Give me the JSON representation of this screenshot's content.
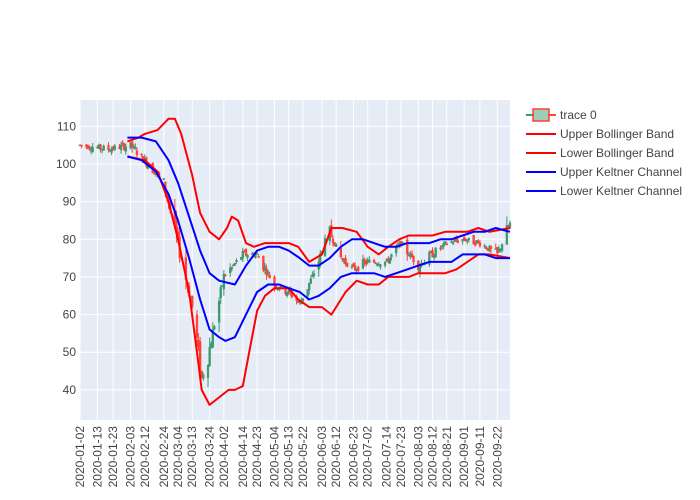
{
  "chart_data": {
    "type": "candlestick",
    "title": "",
    "xlabel": "",
    "ylabel": "",
    "ylim": [
      32,
      117
    ],
    "xlim": [
      "2020-01-02",
      "2020-09-30"
    ],
    "grid": true,
    "legend_position": "top-right",
    "x_ticks": [
      "2020-01-02",
      "2020-01-13",
      "2020-01-23",
      "2020-02-03",
      "2020-02-12",
      "2020-02-24",
      "2020-03-04",
      "2020-03-13",
      "2020-03-24",
      "2020-04-02",
      "2020-04-14",
      "2020-04-23",
      "2020-05-04",
      "2020-05-13",
      "2020-05-22",
      "2020-06-03",
      "2020-06-12",
      "2020-06-23",
      "2020-07-02",
      "2020-07-14",
      "2020-07-23",
      "2020-08-03",
      "2020-08-12",
      "2020-08-21",
      "2020-09-01",
      "2020-09-11",
      "2020-09-22"
    ],
    "y_ticks": [
      40,
      50,
      60,
      70,
      80,
      90,
      100,
      110
    ],
    "colors": {
      "increasing": "#3D9970",
      "decreasing": "#FF4136",
      "bollinger": "#FF0000",
      "keltner": "#0000FF",
      "plot_bg": "#E5ECF6"
    },
    "candle_key_points": [
      [
        "2020-01-02",
        105
      ],
      [
        "2020-01-20",
        104
      ],
      [
        "2020-02-03",
        105
      ],
      [
        "2020-02-12",
        101
      ],
      [
        "2020-02-24",
        95
      ],
      [
        "2020-03-04",
        79
      ],
      [
        "2020-03-13",
        62
      ],
      [
        "2020-03-19",
        43
      ],
      [
        "2020-03-24",
        51
      ],
      [
        "2020-04-02",
        70
      ],
      [
        "2020-04-14",
        76
      ],
      [
        "2020-04-23",
        76
      ],
      [
        "2020-05-04",
        68
      ],
      [
        "2020-05-13",
        66
      ],
      [
        "2020-05-20",
        63
      ],
      [
        "2020-05-28",
        70
      ],
      [
        "2020-06-08",
        82
      ],
      [
        "2020-06-15",
        75
      ],
      [
        "2020-06-23",
        72
      ],
      [
        "2020-07-02",
        74
      ],
      [
        "2020-07-14",
        74
      ],
      [
        "2020-07-23",
        79
      ],
      [
        "2020-08-03",
        73
      ],
      [
        "2020-08-12",
        76
      ],
      [
        "2020-08-21",
        79
      ],
      [
        "2020-09-01",
        80
      ],
      [
        "2020-09-11",
        79
      ],
      [
        "2020-09-22",
        76
      ],
      [
        "2020-09-30",
        84
      ]
    ],
    "series": [
      {
        "name": "trace 0",
        "kind": "candlestick"
      },
      {
        "name": "Upper Bollinger Band",
        "kind": "line",
        "color": "#FF0000",
        "points": [
          [
            "2020-02-01",
            106
          ],
          [
            "2020-02-08",
            107
          ],
          [
            "2020-02-12",
            108
          ],
          [
            "2020-02-20",
            109
          ],
          [
            "2020-02-27",
            112
          ],
          [
            "2020-03-02",
            112
          ],
          [
            "2020-03-06",
            108
          ],
          [
            "2020-03-13",
            97
          ],
          [
            "2020-03-18",
            87
          ],
          [
            "2020-03-24",
            82
          ],
          [
            "2020-03-30",
            80
          ],
          [
            "2020-04-04",
            83
          ],
          [
            "2020-04-07",
            86
          ],
          [
            "2020-04-11",
            85
          ],
          [
            "2020-04-16",
            79
          ],
          [
            "2020-04-21",
            78
          ],
          [
            "2020-04-28",
            79
          ],
          [
            "2020-05-06",
            79
          ],
          [
            "2020-05-13",
            79
          ],
          [
            "2020-05-19",
            78
          ],
          [
            "2020-05-26",
            74
          ],
          [
            "2020-06-03",
            76
          ],
          [
            "2020-06-09",
            83
          ],
          [
            "2020-06-16",
            83
          ],
          [
            "2020-06-25",
            82
          ],
          [
            "2020-07-02",
            78
          ],
          [
            "2020-07-09",
            76
          ],
          [
            "2020-07-15",
            78
          ],
          [
            "2020-07-22",
            80
          ],
          [
            "2020-07-28",
            81
          ],
          [
            "2020-08-12",
            81
          ],
          [
            "2020-08-20",
            82
          ],
          [
            "2020-08-27",
            82
          ],
          [
            "2020-09-03",
            82
          ],
          [
            "2020-09-10",
            83
          ],
          [
            "2020-09-17",
            82
          ],
          [
            "2020-09-30",
            83
          ]
        ]
      },
      {
        "name": "Lower Bollinger Band",
        "kind": "line",
        "color": "#FF0000",
        "points": [
          [
            "2020-02-01",
            102
          ],
          [
            "2020-02-12",
            101
          ],
          [
            "2020-02-20",
            98
          ],
          [
            "2020-02-27",
            90
          ],
          [
            "2020-03-04",
            80
          ],
          [
            "2020-03-11",
            66
          ],
          [
            "2020-03-16",
            50
          ],
          [
            "2020-03-19",
            40
          ],
          [
            "2020-03-24",
            36
          ],
          [
            "2020-03-30",
            38
          ],
          [
            "2020-04-05",
            40
          ],
          [
            "2020-04-09",
            40
          ],
          [
            "2020-04-14",
            41
          ],
          [
            "2020-04-18",
            50
          ],
          [
            "2020-04-23",
            61
          ],
          [
            "2020-04-28",
            65
          ],
          [
            "2020-05-04",
            67
          ],
          [
            "2020-05-13",
            67
          ],
          [
            "2020-05-19",
            64
          ],
          [
            "2020-05-26",
            62
          ],
          [
            "2020-06-03",
            62
          ],
          [
            "2020-06-09",
            60
          ],
          [
            "2020-06-18",
            66
          ],
          [
            "2020-06-25",
            69
          ],
          [
            "2020-07-02",
            68
          ],
          [
            "2020-07-09",
            68
          ],
          [
            "2020-07-15",
            70
          ],
          [
            "2020-07-22",
            70
          ],
          [
            "2020-07-28",
            70
          ],
          [
            "2020-08-03",
            71
          ],
          [
            "2020-08-10",
            71
          ],
          [
            "2020-08-20",
            71
          ],
          [
            "2020-08-27",
            72
          ],
          [
            "2020-09-03",
            74
          ],
          [
            "2020-09-10",
            76
          ],
          [
            "2020-09-17",
            76
          ],
          [
            "2020-09-30",
            75
          ]
        ]
      },
      {
        "name": "Upper Keltner Channel",
        "kind": "line",
        "color": "#0000FF",
        "points": [
          [
            "2020-02-01",
            107
          ],
          [
            "2020-02-10",
            107
          ],
          [
            "2020-02-19",
            106
          ],
          [
            "2020-02-27",
            101
          ],
          [
            "2020-03-04",
            95
          ],
          [
            "2020-03-11",
            86
          ],
          [
            "2020-03-18",
            77
          ],
          [
            "2020-03-24",
            71
          ],
          [
            "2020-03-30",
            69
          ],
          [
            "2020-04-09",
            68
          ],
          [
            "2020-04-16",
            73
          ],
          [
            "2020-04-23",
            77
          ],
          [
            "2020-04-30",
            78
          ],
          [
            "2020-05-07",
            78
          ],
          [
            "2020-05-13",
            77
          ],
          [
            "2020-05-20",
            75
          ],
          [
            "2020-05-26",
            73
          ],
          [
            "2020-06-01",
            73
          ],
          [
            "2020-06-08",
            75
          ],
          [
            "2020-06-15",
            78
          ],
          [
            "2020-06-22",
            80
          ],
          [
            "2020-06-29",
            80
          ],
          [
            "2020-07-06",
            79
          ],
          [
            "2020-07-13",
            78
          ],
          [
            "2020-07-20",
            78
          ],
          [
            "2020-07-27",
            79
          ],
          [
            "2020-08-03",
            79
          ],
          [
            "2020-08-10",
            79
          ],
          [
            "2020-08-17",
            80
          ],
          [
            "2020-08-24",
            80
          ],
          [
            "2020-08-31",
            81
          ],
          [
            "2020-09-07",
            82
          ],
          [
            "2020-09-14",
            82
          ],
          [
            "2020-09-21",
            83
          ],
          [
            "2020-09-30",
            82
          ]
        ]
      },
      {
        "name": "Lower Keltner Channel",
        "kind": "line",
        "color": "#0000FF",
        "points": [
          [
            "2020-02-01",
            102
          ],
          [
            "2020-02-10",
            101
          ],
          [
            "2020-02-19",
            98
          ],
          [
            "2020-02-27",
            92
          ],
          [
            "2020-03-04",
            85
          ],
          [
            "2020-03-11",
            75
          ],
          [
            "2020-03-18",
            64
          ],
          [
            "2020-03-24",
            56
          ],
          [
            "2020-03-30",
            54
          ],
          [
            "2020-04-03",
            53
          ],
          [
            "2020-04-09",
            54
          ],
          [
            "2020-04-16",
            60
          ],
          [
            "2020-04-23",
            66
          ],
          [
            "2020-04-30",
            68
          ],
          [
            "2020-05-07",
            68
          ],
          [
            "2020-05-13",
            67
          ],
          [
            "2020-05-20",
            66
          ],
          [
            "2020-05-26",
            64
          ],
          [
            "2020-06-01",
            65
          ],
          [
            "2020-06-08",
            67
          ],
          [
            "2020-06-15",
            70
          ],
          [
            "2020-06-22",
            71
          ],
          [
            "2020-06-29",
            71
          ],
          [
            "2020-07-06",
            71
          ],
          [
            "2020-07-13",
            70
          ],
          [
            "2020-07-20",
            71
          ],
          [
            "2020-07-27",
            72
          ],
          [
            "2020-08-03",
            73
          ],
          [
            "2020-08-10",
            74
          ],
          [
            "2020-08-17",
            74
          ],
          [
            "2020-08-24",
            74
          ],
          [
            "2020-08-31",
            76
          ],
          [
            "2020-09-07",
            76
          ],
          [
            "2020-09-14",
            76
          ],
          [
            "2020-09-21",
            75
          ],
          [
            "2020-09-30",
            75
          ]
        ]
      }
    ]
  }
}
